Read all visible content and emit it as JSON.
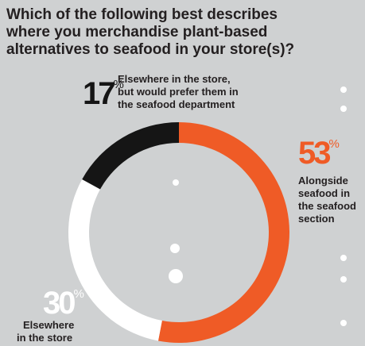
{
  "title_lines": [
    "Which of the following best describes",
    "where you merchandise plant-based",
    "alternatives to seafood in your store(s)?"
  ],
  "chart_data": {
    "type": "pie",
    "donut": true,
    "slices": [
      {
        "value": 53,
        "value_label": "53",
        "unit": "%",
        "label_lines": [
          "Alongside",
          "seafood in",
          "the seafood",
          "section"
        ],
        "color": "#ef5b26",
        "label_color": "#ef5b26"
      },
      {
        "value": 30,
        "value_label": "30",
        "unit": "%",
        "label_lines": [
          "Elsewhere",
          "in the store"
        ],
        "color": "#ffffff",
        "label_color": "#ffffff"
      },
      {
        "value": 17,
        "value_label": "17",
        "unit": "%",
        "label_lines": [
          "Elsewhere in the store,",
          "but would prefer them in",
          "the seafood department"
        ],
        "color": "#151515",
        "label_color": "#151515"
      }
    ]
  },
  "colors": {
    "background": "#cfd1d2",
    "text": "#231f20",
    "dots": "#ffffff"
  }
}
